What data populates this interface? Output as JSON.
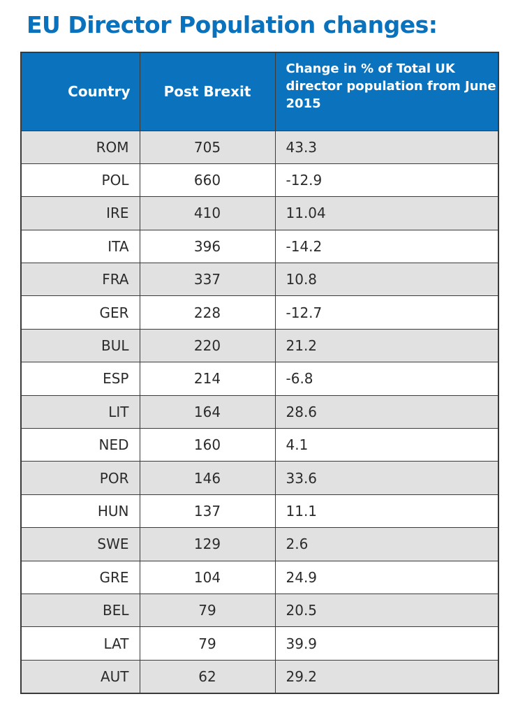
{
  "page": {
    "title": "EU Director Population changes:"
  },
  "chart_data": {
    "type": "table",
    "title": "EU Director Population changes:",
    "columns": [
      "Country",
      "Post Brexit",
      "Change in % of Total UK director population from June 2015"
    ],
    "rows": [
      [
        "ROM",
        "705",
        "43.3"
      ],
      [
        "POL",
        "660",
        "-12.9"
      ],
      [
        "IRE",
        "410",
        "11.04"
      ],
      [
        "ITA",
        "396",
        "-14.2"
      ],
      [
        "FRA",
        "337",
        "10.8"
      ],
      [
        "GER",
        "228",
        "-12.7"
      ],
      [
        "BUL",
        "220",
        "21.2"
      ],
      [
        "ESP",
        "214",
        "-6.8"
      ],
      [
        "LIT",
        "164",
        "28.6"
      ],
      [
        "NED",
        "160",
        "4.1"
      ],
      [
        "POR",
        "146",
        "33.6"
      ],
      [
        "HUN",
        "137",
        "11.1"
      ],
      [
        "SWE",
        "129",
        "2.6"
      ],
      [
        "GRE",
        "104",
        "24.9"
      ],
      [
        "BEL",
        "79",
        "20.5"
      ],
      [
        "LAT",
        "79",
        "39.9"
      ],
      [
        "AUT",
        "62",
        "29.2"
      ]
    ]
  },
  "colors": {
    "title": "#0a72bd",
    "header_bg": "#0b72bd",
    "row_alt": "#e1e1e1",
    "border": "#3a3a3a"
  }
}
